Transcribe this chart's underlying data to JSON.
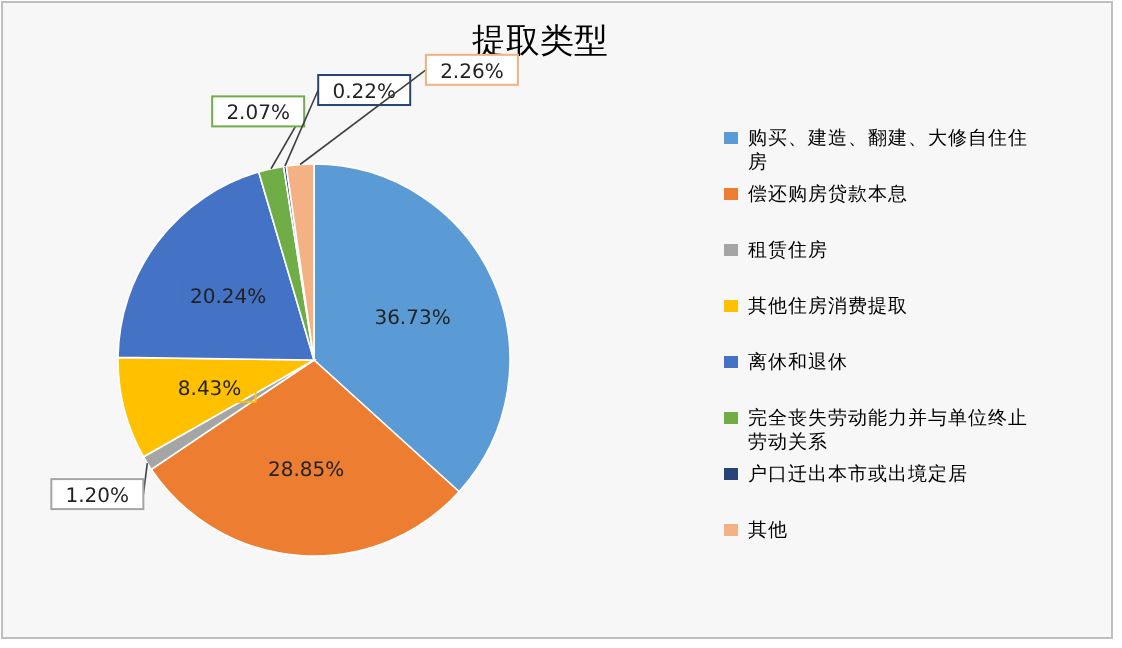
{
  "chart_data": {
    "type": "pie",
    "title": "提取类型",
    "categories": [
      "购买、建造、翻建、大修自住住房",
      "偿还购房贷款本息",
      "租赁住房",
      "其他住房消费提取",
      "离休和退休",
      "完全丧失劳动能力并与单位终止劳动关系",
      "户口迁出本市或出境定居",
      "其他"
    ],
    "values": [
      36.73,
      28.85,
      1.2,
      8.43,
      20.24,
      2.07,
      0.22,
      2.26
    ],
    "colors": [
      "#5b9bd5",
      "#ed7d31",
      "#a5a5a5",
      "#ffc000",
      "#4472c4",
      "#70ad47",
      "#264478",
      "#f4b183"
    ],
    "value_labels": [
      "36.73%",
      "28.85%",
      "1.20%",
      "8.43%",
      "20.24%",
      "2.07%",
      "0.22%",
      "2.26%"
    ],
    "legend": "right"
  }
}
